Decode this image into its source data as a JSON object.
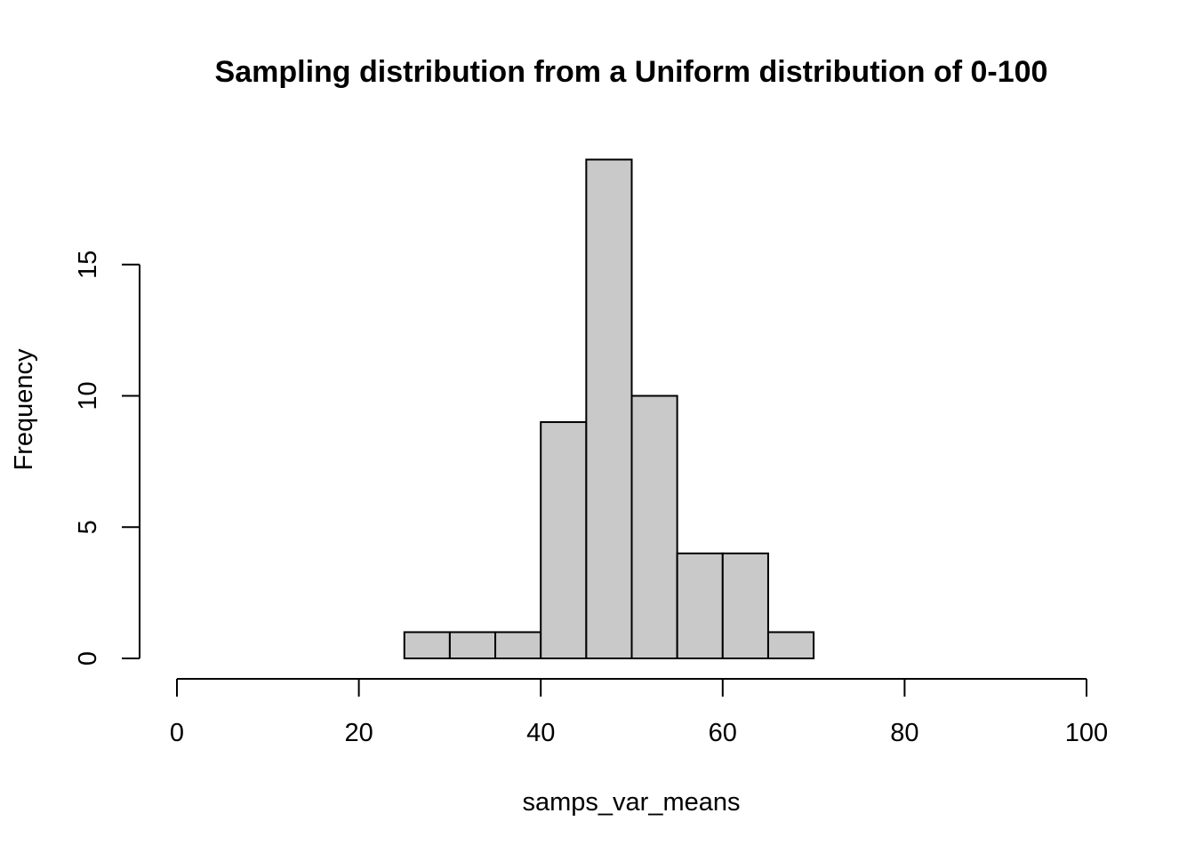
{
  "chart_data": {
    "type": "bar",
    "title": "Sampling distribution from a Uniform distribution of 0-100",
    "xlabel": "samps_var_means",
    "ylabel": "Frequency",
    "xlim": [
      0,
      100
    ],
    "ylim": [
      0,
      19
    ],
    "x_ticks": [
      0,
      20,
      40,
      60,
      80,
      100
    ],
    "y_ticks": [
      0,
      5,
      10,
      15
    ],
    "bin_width": 5,
    "bins": [
      {
        "start": 25,
        "end": 30,
        "count": 1
      },
      {
        "start": 30,
        "end": 35,
        "count": 1
      },
      {
        "start": 35,
        "end": 40,
        "count": 1
      },
      {
        "start": 40,
        "end": 45,
        "count": 9
      },
      {
        "start": 45,
        "end": 50,
        "count": 19
      },
      {
        "start": 50,
        "end": 55,
        "count": 10
      },
      {
        "start": 55,
        "end": 60,
        "count": 4
      },
      {
        "start": 60,
        "end": 65,
        "count": 4
      },
      {
        "start": 65,
        "end": 70,
        "count": 1
      }
    ],
    "grid": false,
    "legend": "none",
    "bar_color": "#c9c9c9",
    "edge_color": "#000000"
  }
}
